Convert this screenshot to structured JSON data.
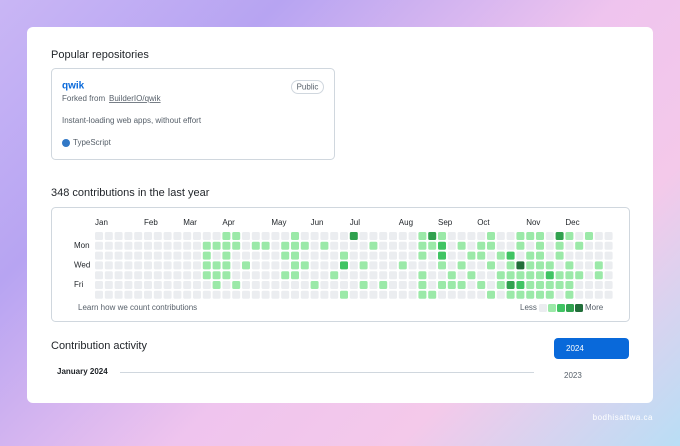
{
  "repositories": {
    "heading": "Popular repositories",
    "items": [
      {
        "name": "qwik",
        "visibility": "Public",
        "forked_from_prefix": "Forked from",
        "forked_from": "BuilderIO/qwik",
        "description": "Instant-loading web apps, without effort",
        "language": "TypeScript",
        "language_color": "#3178c6"
      }
    ]
  },
  "contributions": {
    "heading": "348 contributions in the last year",
    "months": [
      "Jan",
      "Feb",
      "Mar",
      "Apr",
      "May",
      "Jun",
      "Jul",
      "Aug",
      "Sep",
      "Oct",
      "Nov",
      "Dec"
    ],
    "days": [
      "Mon",
      "Wed",
      "Fri"
    ],
    "level_colors": [
      "#ebedf0",
      "#9be9a8",
      "#40c463",
      "#30a14e",
      "#216e39"
    ],
    "levels": [
      [
        0,
        0,
        0,
        0,
        0,
        0,
        0,
        0,
        0,
        0,
        0,
        0,
        0,
        1,
        1,
        0,
        0,
        0,
        0,
        0,
        1,
        0,
        0,
        0,
        0,
        0,
        3,
        0,
        0,
        0,
        0,
        0,
        0,
        1,
        3,
        1,
        0,
        0,
        0,
        0,
        1,
        0,
        0,
        1,
        1,
        1,
        0,
        3,
        1,
        0,
        1,
        0,
        0
      ],
      [
        0,
        0,
        0,
        0,
        0,
        0,
        0,
        0,
        0,
        0,
        0,
        1,
        1,
        1,
        1,
        0,
        1,
        1,
        0,
        1,
        1,
        1,
        0,
        1,
        0,
        0,
        0,
        0,
        1,
        0,
        0,
        0,
        0,
        1,
        1,
        2,
        0,
        1,
        0,
        1,
        1,
        0,
        0,
        1,
        0,
        1,
        0,
        1,
        0,
        1,
        0,
        0,
        0
      ],
      [
        0,
        0,
        0,
        0,
        0,
        0,
        0,
        0,
        0,
        0,
        0,
        1,
        0,
        1,
        0,
        0,
        0,
        0,
        0,
        1,
        1,
        0,
        0,
        0,
        0,
        1,
        0,
        0,
        0,
        0,
        0,
        0,
        0,
        1,
        0,
        2,
        0,
        0,
        1,
        1,
        0,
        1,
        2,
        0,
        1,
        1,
        0,
        1,
        0,
        0,
        0,
        0,
        0
      ],
      [
        0,
        0,
        0,
        0,
        0,
        0,
        0,
        0,
        0,
        0,
        0,
        1,
        1,
        1,
        0,
        1,
        0,
        0,
        0,
        0,
        1,
        1,
        0,
        0,
        0,
        2,
        0,
        1,
        0,
        0,
        0,
        1,
        0,
        0,
        0,
        1,
        0,
        1,
        0,
        0,
        1,
        0,
        1,
        4,
        1,
        1,
        1,
        0,
        1,
        0,
        0,
        1,
        0
      ],
      [
        0,
        0,
        0,
        0,
        0,
        0,
        0,
        0,
        0,
        0,
        0,
        1,
        1,
        1,
        0,
        0,
        0,
        0,
        0,
        1,
        1,
        0,
        0,
        0,
        1,
        0,
        0,
        0,
        0,
        0,
        0,
        0,
        0,
        1,
        0,
        0,
        1,
        0,
        1,
        0,
        0,
        1,
        1,
        1,
        1,
        1,
        2,
        1,
        1,
        1,
        0,
        1,
        0
      ],
      [
        0,
        0,
        0,
        0,
        0,
        0,
        0,
        0,
        0,
        0,
        0,
        0,
        1,
        0,
        1,
        0,
        0,
        0,
        0,
        0,
        0,
        0,
        1,
        0,
        0,
        0,
        0,
        1,
        0,
        1,
        0,
        0,
        0,
        1,
        0,
        1,
        1,
        1,
        0,
        1,
        0,
        1,
        3,
        2,
        1,
        1,
        1,
        1,
        1,
        0,
        0,
        0,
        0
      ],
      [
        0,
        0,
        0,
        0,
        0,
        0,
        0,
        0,
        0,
        0,
        0,
        0,
        0,
        0,
        0,
        0,
        0,
        0,
        0,
        0,
        0,
        0,
        0,
        0,
        0,
        1,
        0,
        0,
        0,
        0,
        0,
        0,
        0,
        1,
        1,
        0,
        0,
        0,
        0,
        0,
        1,
        0,
        1,
        1,
        1,
        1,
        1,
        0,
        1,
        0,
        0,
        0,
        0
      ]
    ],
    "learn_link": "Learn how we count contributions",
    "legend_less": "Less",
    "legend_more": "More"
  },
  "activity": {
    "heading": "Contribution activity",
    "month": "January 2024",
    "years": [
      "2024",
      "2023"
    ]
  },
  "watermark": "bodhisattwa.ca"
}
